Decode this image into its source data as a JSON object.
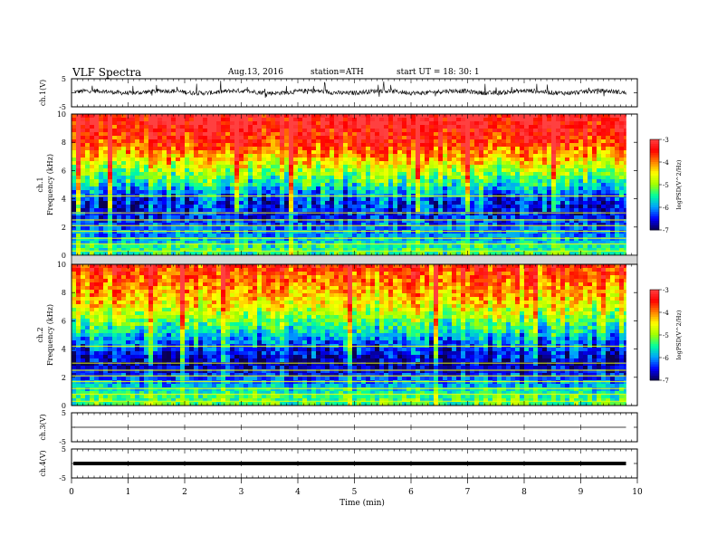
{
  "header": {
    "title": "VLF  Spectra",
    "date": "Aug.13, 2016",
    "station": "station=ATH",
    "start_ut": "start  UT =   18: 30: 1"
  },
  "colors": {
    "background": "#ffffff",
    "axis": "#000000",
    "trace": "#000000",
    "colormap": [
      "#0a0050",
      "#0000ff",
      "#00a0ff",
      "#00ffa0",
      "#a0ff00",
      "#ffff00",
      "#ff8000",
      "#ff0000",
      "#ff4040"
    ]
  },
  "chart_data": [
    {
      "type": "line",
      "panel": "ch1-waveform",
      "ylabel": "ch.1(V)",
      "yticks": [
        "5",
        "-5"
      ],
      "ylim": [
        -5,
        5
      ],
      "description_level": 0.3
    },
    {
      "type": "heatmap",
      "panel": "ch1-spectrogram",
      "ylabel": "Frequency  (kHz)",
      "channel_label": "ch.1",
      "ylim": [
        0,
        10
      ],
      "yticks": [
        "0",
        "2",
        "4",
        "6",
        "8",
        "10"
      ],
      "colorbar": {
        "label": "logPSD(V^2/Hz)",
        "ticks": [
          "-3",
          "-4",
          "-5",
          "-6",
          "-7"
        ],
        "range": [
          -7,
          -3
        ]
      },
      "rows_khz": [
        10,
        9,
        8,
        7,
        6,
        5,
        4,
        3,
        2,
        1,
        0.5
      ],
      "row_log_psd": [
        -3.1,
        -3.3,
        -3.6,
        -4.2,
        -4.9,
        -5.6,
        -6.3,
        -6.5,
        -6.2,
        -5.8,
        -5.4
      ]
    },
    {
      "type": "heatmap",
      "panel": "ch2-spectrogram",
      "ylabel": "Frequency  (kHz)",
      "channel_label": "ch.2",
      "ylim": [
        0,
        10
      ],
      "yticks": [
        "0",
        "2",
        "4",
        "6",
        "8",
        "10"
      ],
      "colorbar": {
        "label": "logPSD(V^2/Hz)",
        "ticks": [
          "-3",
          "-4",
          "-5",
          "-6",
          "-7"
        ],
        "range": [
          -7,
          -3
        ]
      },
      "rows_khz": [
        10,
        9,
        8,
        7,
        6,
        5,
        4,
        3,
        2,
        1,
        0.5
      ],
      "row_log_psd": [
        -3.6,
        -3.9,
        -4.2,
        -4.6,
        -5.2,
        -5.8,
        -6.4,
        -6.8,
        -6.3,
        -5.6,
        -5.3
      ]
    },
    {
      "type": "line",
      "panel": "ch3-waveform",
      "ylabel": "ch.3(V)",
      "yticks": [
        "5",
        "-5"
      ],
      "ylim": [
        -5,
        5
      ],
      "level": 0
    },
    {
      "type": "line",
      "panel": "ch4-waveform",
      "ylabel": "ch.4(V)",
      "yticks": [
        "5",
        "-5"
      ],
      "ylim": [
        -5,
        5
      ],
      "level": 0
    }
  ],
  "xaxis": {
    "label": "Time  (min)",
    "ticks": [
      "0",
      "1",
      "2",
      "3",
      "4",
      "5",
      "6",
      "7",
      "8",
      "9",
      "10"
    ],
    "range": [
      0,
      10
    ],
    "data_end": 9.8
  }
}
